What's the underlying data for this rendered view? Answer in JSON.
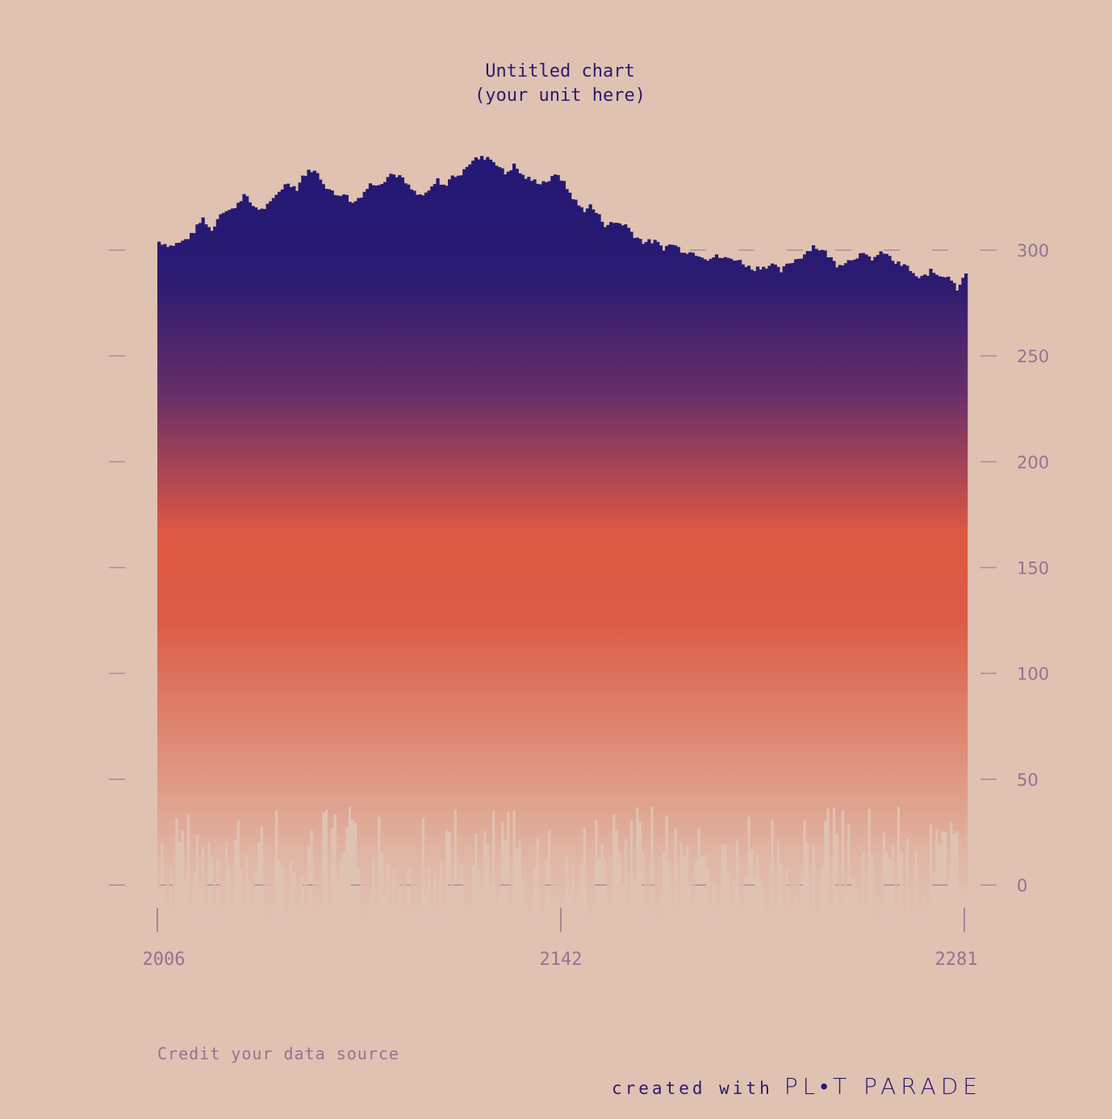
{
  "chart_data": {
    "type": "bar",
    "title": "Untitled chart",
    "subtitle": "(your unit here)",
    "x_tick_labels": [
      "2006",
      "2142",
      "2281"
    ],
    "y_ticks": [
      0,
      50,
      100,
      150,
      200,
      250,
      300
    ],
    "y_tick_labels": [
      "0",
      "50",
      "100",
      "150",
      "200",
      "250",
      "300"
    ],
    "ylim": [
      0,
      345
    ],
    "xlim": [
      2006,
      2281
    ],
    "gradient_colors": [
      "#221875",
      "#de5843",
      "#e0c2b3"
    ],
    "series": [
      {
        "keypoints": [
          [
            2006,
            304
          ],
          [
            2010,
            302
          ],
          [
            2014,
            304
          ],
          [
            2017,
            307
          ],
          [
            2021,
            315
          ],
          [
            2024,
            309
          ],
          [
            2027,
            318
          ],
          [
            2031,
            319
          ],
          [
            2035,
            326
          ],
          [
            2038,
            321
          ],
          [
            2041,
            319
          ],
          [
            2044,
            322
          ],
          [
            2047,
            328
          ],
          [
            2050,
            332
          ],
          [
            2053,
            329
          ],
          [
            2055,
            335
          ],
          [
            2058,
            338
          ],
          [
            2060,
            336
          ],
          [
            2063,
            330
          ],
          [
            2066,
            326
          ],
          [
            2069,
            327
          ],
          [
            2072,
            322
          ],
          [
            2075,
            326
          ],
          [
            2078,
            331
          ],
          [
            2082,
            332
          ],
          [
            2085,
            336
          ],
          [
            2088,
            335
          ],
          [
            2091,
            330
          ],
          [
            2094,
            326
          ],
          [
            2097,
            326
          ],
          [
            2101,
            333
          ],
          [
            2104,
            330
          ],
          [
            2106,
            336
          ],
          [
            2108,
            334
          ],
          [
            2110,
            339
          ],
          [
            2114,
            343
          ],
          [
            2118,
            344
          ],
          [
            2121,
            341
          ],
          [
            2124,
            336
          ],
          [
            2127,
            340
          ],
          [
            2130,
            335
          ],
          [
            2133,
            333
          ],
          [
            2136,
            332
          ],
          [
            2139,
            333
          ],
          [
            2142,
            336
          ],
          [
            2146,
            327
          ],
          [
            2149,
            321
          ],
          [
            2151,
            319
          ],
          [
            2153,
            321
          ],
          [
            2156,
            316
          ],
          [
            2158,
            312
          ],
          [
            2162,
            313
          ],
          [
            2165,
            312
          ],
          [
            2168,
            307
          ],
          [
            2171,
            304
          ],
          [
            2175,
            304
          ],
          [
            2178,
            301
          ],
          [
            2181,
            303
          ],
          [
            2184,
            300
          ],
          [
            2187,
            299
          ],
          [
            2190,
            298
          ],
          [
            2193,
            296
          ],
          [
            2196,
            297
          ],
          [
            2199,
            296
          ],
          [
            2202,
            296
          ],
          [
            2205,
            294
          ],
          [
            2208,
            291
          ],
          [
            2211,
            292
          ],
          [
            2215,
            293
          ],
          [
            2218,
            290
          ],
          [
            2221,
            294
          ],
          [
            2225,
            297
          ],
          [
            2229,
            302
          ],
          [
            2233,
            299
          ],
          [
            2237,
            293
          ],
          [
            2241,
            295
          ],
          [
            2245,
            298
          ],
          [
            2249,
            296
          ],
          [
            2253,
            299
          ],
          [
            2257,
            294
          ],
          [
            2261,
            292
          ],
          [
            2265,
            286
          ],
          [
            2269,
            290
          ],
          [
            2272,
            288
          ],
          [
            2275,
            288
          ],
          [
            2278,
            282
          ],
          [
            2281,
            290
          ]
        ]
      }
    ]
  },
  "credit": "Credit your data source",
  "footer": {
    "created": "created with",
    "brand": "PL•T PARADE"
  }
}
